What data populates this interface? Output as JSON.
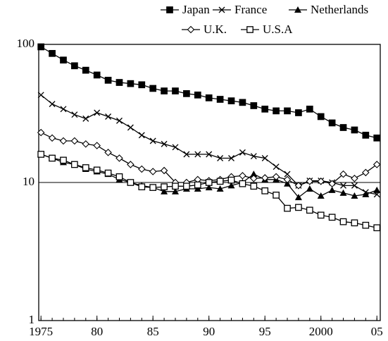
{
  "chart_data": {
    "type": "line",
    "x": [
      1975,
      1976,
      1977,
      1978,
      1979,
      1980,
      1981,
      1982,
      1983,
      1984,
      1985,
      1986,
      1987,
      1988,
      1989,
      1990,
      1991,
      1992,
      1993,
      1994,
      1995,
      1996,
      1997,
      1998,
      1999,
      2000,
      2001,
      2002,
      2003,
      2004,
      2005
    ],
    "series": [
      {
        "name": "Japan",
        "color": "#000000",
        "marker": "filled-square",
        "values": [
          96,
          86,
          77,
          70,
          65,
          60,
          55,
          53,
          52,
          51,
          48,
          46,
          46,
          44,
          43,
          41,
          40,
          39,
          38,
          36,
          34,
          33,
          33,
          32,
          34,
          30,
          27,
          25,
          24,
          22,
          21
        ]
      },
      {
        "name": "France",
        "color": "#000000",
        "marker": "cross",
        "values": [
          43,
          37,
          34,
          31,
          29,
          32,
          30,
          28,
          25,
          22,
          20,
          19,
          18,
          16,
          16,
          16,
          15,
          15,
          16.5,
          15.5,
          15,
          13,
          11.5,
          9.5,
          10.3,
          10.3,
          10,
          9.5,
          9.5,
          8.5,
          8.2
        ]
      },
      {
        "name": "Netherlands",
        "color": "#000000",
        "marker": "filled-triangle",
        "values": [
          16,
          15,
          14,
          13.5,
          12.5,
          12,
          11.5,
          10.5,
          10,
          9.5,
          9.2,
          8.6,
          8.6,
          9,
          9,
          9.2,
          9,
          9.5,
          10,
          11.5,
          10.5,
          10.5,
          9.8,
          7.8,
          9,
          8,
          8.8,
          8.4,
          8,
          8.2,
          8.8
        ]
      },
      {
        "name": "U.K.",
        "color": "#000000",
        "marker": "open-diamond",
        "values": [
          23,
          21,
          20,
          20,
          19,
          18.5,
          16.5,
          15,
          13.5,
          12.5,
          12,
          12.2,
          10,
          10,
          10.5,
          10.3,
          10.5,
          11,
          11.2,
          10.7,
          10.8,
          11,
          10.5,
          9.5,
          10.2,
          10.2,
          9.8,
          11.5,
          10.7,
          11.8,
          13.5
        ]
      },
      {
        "name": "U.S.A",
        "color": "#000000",
        "marker": "open-square",
        "values": [
          16,
          15,
          14.5,
          13.5,
          12.8,
          12.3,
          11.7,
          11,
          10,
          9.3,
          9.2,
          9.3,
          9.4,
          9.4,
          9.6,
          10,
          10.2,
          10.4,
          9.8,
          9.4,
          8.7,
          8.1,
          6.5,
          6.6,
          6.3,
          5.8,
          5.6,
          5.2,
          5.1,
          4.9,
          4.7
        ]
      }
    ],
    "xlim": [
      1974.8,
      2005.3
    ],
    "xticks": [
      1975,
      {
        "value": 1980,
        "label": "80"
      },
      {
        "value": 1985,
        "label": "85"
      },
      {
        "value": 1990,
        "label": "90"
      },
      {
        "value": 1995,
        "label": "95"
      },
      2000,
      {
        "value": 2005,
        "label": "05"
      }
    ],
    "ylim": [
      1,
      100
    ],
    "yticks": [
      1,
      10,
      100
    ],
    "log_y": true,
    "grid": true,
    "legend": "top"
  }
}
